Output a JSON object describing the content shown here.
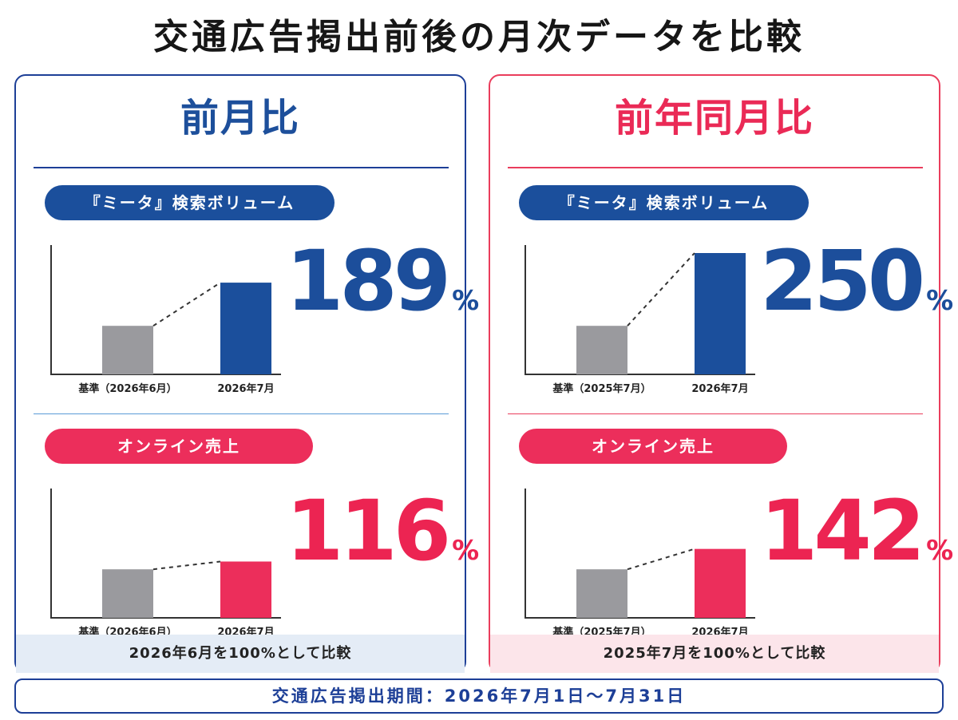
{
  "title": "交通広告掲出前後の月次データを比較",
  "panels": [
    {
      "heading": "前月比",
      "footnote": "2026年6月を100%として比較",
      "metrics": [
        {
          "label": "『ミータ』検索ボリューム",
          "percent": "189",
          "unit": "%"
        },
        {
          "label": "オンライン売上",
          "percent": "116",
          "unit": "%"
        }
      ]
    },
    {
      "heading": "前年同月比",
      "footnote": "2025年7月を100%として比較",
      "metrics": [
        {
          "label": "『ミータ』検索ボリューム",
          "percent": "250",
          "unit": "%"
        },
        {
          "label": "オンライン売上",
          "percent": "142",
          "unit": "%"
        }
      ]
    }
  ],
  "period": "交通広告掲出期間：2026年7月1日〜7月31日",
  "colors": {
    "navy": "#1b4f9c",
    "pink": "#ec2e5b",
    "baseline_gray": "#9a9a9e"
  },
  "chart_data": [
    {
      "type": "bar",
      "title": "『ミータ』検索ボリューム",
      "categories": [
        "基準（2026年6月）",
        "2026年7月"
      ],
      "values": [
        100,
        189
      ],
      "unit": "%"
    },
    {
      "type": "bar",
      "title": "オンライン売上",
      "categories": [
        "基準（2026年6月）",
        "2026年7月"
      ],
      "values": [
        100,
        116
      ],
      "unit": "%"
    },
    {
      "type": "bar",
      "title": "『ミータ』検索ボリューム",
      "categories": [
        "基準（2025年7月）",
        "2026年7月"
      ],
      "values": [
        100,
        250
      ],
      "unit": "%"
    },
    {
      "type": "bar",
      "title": "オンライン売上",
      "categories": [
        "基準（2025年7月）",
        "2026年7月"
      ],
      "values": [
        100,
        142
      ],
      "unit": "%"
    }
  ]
}
